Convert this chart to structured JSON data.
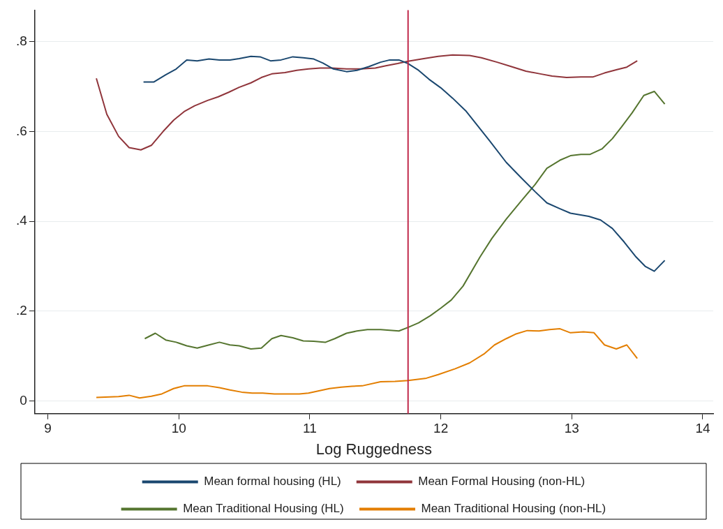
{
  "chart_data": {
    "type": "line",
    "xlabel": "Log Ruggedness",
    "xlim": [
      8.9,
      14.08
    ],
    "ylim": [
      -0.028,
      0.87
    ],
    "xticks": [
      9,
      10,
      11,
      12,
      13,
      14
    ],
    "yticks": [
      0,
      {
        "value": 0.2,
        "label": ".2"
      },
      {
        "value": 0.4,
        "label": ".4"
      },
      {
        "value": 0.6,
        "label": ".6"
      },
      {
        "value": 0.8,
        "label": ".8"
      }
    ],
    "grid": "y",
    "legend": "bottom",
    "marker": "none",
    "line_style": "solid",
    "ref_lines": [
      {
        "axis": "x",
        "value": 11.75,
        "color": "#c0284a"
      }
    ],
    "series": [
      {
        "name": "Mean formal housing (HL)",
        "color": "#1a476f",
        "x": [
          9.73,
          9.81,
          9.9,
          9.98,
          10.06,
          10.14,
          10.23,
          10.31,
          10.39,
          10.46,
          10.55,
          10.62,
          10.7,
          10.78,
          10.87,
          10.95,
          11.03,
          11.1,
          11.18,
          11.28,
          11.36,
          11.45,
          11.54,
          11.61,
          11.68,
          11.75,
          11.83,
          11.91,
          12.0,
          12.09,
          12.19,
          12.28,
          12.37,
          12.5,
          12.61,
          12.72,
          12.81,
          12.91,
          12.99,
          13.13,
          13.22,
          13.31,
          13.4,
          13.49,
          13.56,
          13.63,
          13.71
        ],
        "values": [
          0.71,
          0.71,
          0.726,
          0.739,
          0.759,
          0.757,
          0.761,
          0.759,
          0.759,
          0.762,
          0.767,
          0.766,
          0.757,
          0.759,
          0.766,
          0.764,
          0.761,
          0.752,
          0.739,
          0.733,
          0.736,
          0.744,
          0.754,
          0.759,
          0.759,
          0.751,
          0.736,
          0.716,
          0.697,
          0.674,
          0.646,
          0.613,
          0.58,
          0.531,
          0.498,
          0.466,
          0.441,
          0.428,
          0.418,
          0.411,
          0.403,
          0.384,
          0.354,
          0.321,
          0.3,
          0.289,
          0.313
        ]
      },
      {
        "name": "Mean Formal Housing (non-HL)",
        "color": "#90353b",
        "x": [
          9.37,
          9.45,
          9.54,
          9.62,
          9.71,
          9.79,
          9.88,
          9.96,
          10.04,
          10.12,
          10.22,
          10.3,
          10.38,
          10.46,
          10.55,
          10.63,
          10.71,
          10.81,
          10.9,
          10.99,
          11.08,
          11.17,
          11.28,
          11.39,
          11.5,
          11.58,
          11.67,
          11.75,
          11.87,
          11.98,
          12.09,
          12.22,
          12.31,
          12.43,
          12.54,
          12.65,
          12.76,
          12.85,
          12.96,
          13.07,
          13.16,
          13.25,
          13.35,
          13.42,
          13.5
        ],
        "values": [
          0.718,
          0.638,
          0.589,
          0.564,
          0.559,
          0.569,
          0.6,
          0.625,
          0.644,
          0.657,
          0.669,
          0.677,
          0.687,
          0.698,
          0.708,
          0.72,
          0.728,
          0.731,
          0.736,
          0.739,
          0.741,
          0.741,
          0.739,
          0.739,
          0.741,
          0.746,
          0.751,
          0.756,
          0.762,
          0.767,
          0.77,
          0.769,
          0.764,
          0.754,
          0.744,
          0.734,
          0.728,
          0.723,
          0.72,
          0.721,
          0.721,
          0.73,
          0.738,
          0.743,
          0.757
        ]
      },
      {
        "name": "Mean Traditional Housing (HL)",
        "color": "#55752f",
        "x": [
          9.74,
          9.82,
          9.9,
          9.98,
          10.06,
          10.14,
          10.23,
          10.31,
          10.39,
          10.46,
          10.55,
          10.63,
          10.71,
          10.78,
          10.87,
          10.95,
          11.03,
          11.12,
          11.19,
          11.28,
          11.36,
          11.44,
          11.54,
          11.68,
          11.75,
          11.83,
          11.92,
          12.0,
          12.08,
          12.17,
          12.3,
          12.39,
          12.5,
          12.61,
          12.72,
          12.81,
          12.91,
          12.99,
          13.07,
          13.14,
          13.23,
          13.31,
          13.38,
          13.46,
          13.55,
          13.63,
          13.71
        ],
        "values": [
          0.139,
          0.151,
          0.136,
          0.131,
          0.123,
          0.118,
          0.125,
          0.131,
          0.125,
          0.123,
          0.116,
          0.118,
          0.139,
          0.146,
          0.141,
          0.134,
          0.133,
          0.131,
          0.139,
          0.151,
          0.156,
          0.159,
          0.159,
          0.156,
          0.164,
          0.174,
          0.19,
          0.207,
          0.225,
          0.256,
          0.321,
          0.362,
          0.405,
          0.444,
          0.482,
          0.518,
          0.536,
          0.546,
          0.549,
          0.549,
          0.561,
          0.584,
          0.61,
          0.641,
          0.68,
          0.689,
          0.661
        ]
      },
      {
        "name": "Mean Traditional Housing (non-HL)",
        "color": "#e37e00",
        "x": [
          9.37,
          9.54,
          9.62,
          9.7,
          9.79,
          9.87,
          9.96,
          10.04,
          10.13,
          10.22,
          10.31,
          10.39,
          10.48,
          10.56,
          10.64,
          10.73,
          10.82,
          10.92,
          10.99,
          11.07,
          11.15,
          11.24,
          11.32,
          11.4,
          11.54,
          11.65,
          11.75,
          11.89,
          11.98,
          12.11,
          12.22,
          12.33,
          12.41,
          12.5,
          12.57,
          12.66,
          12.75,
          12.83,
          12.91,
          12.99,
          13.09,
          13.17,
          13.25,
          13.34,
          13.42,
          13.5
        ],
        "values": [
          0.008,
          0.01,
          0.013,
          0.007,
          0.011,
          0.016,
          0.028,
          0.034,
          0.034,
          0.034,
          0.03,
          0.025,
          0.02,
          0.018,
          0.018,
          0.016,
          0.016,
          0.016,
          0.018,
          0.023,
          0.028,
          0.031,
          0.033,
          0.034,
          0.043,
          0.044,
          0.046,
          0.051,
          0.059,
          0.072,
          0.085,
          0.105,
          0.125,
          0.139,
          0.149,
          0.157,
          0.156,
          0.159,
          0.161,
          0.152,
          0.154,
          0.152,
          0.125,
          0.116,
          0.125,
          0.095
        ]
      }
    ]
  }
}
